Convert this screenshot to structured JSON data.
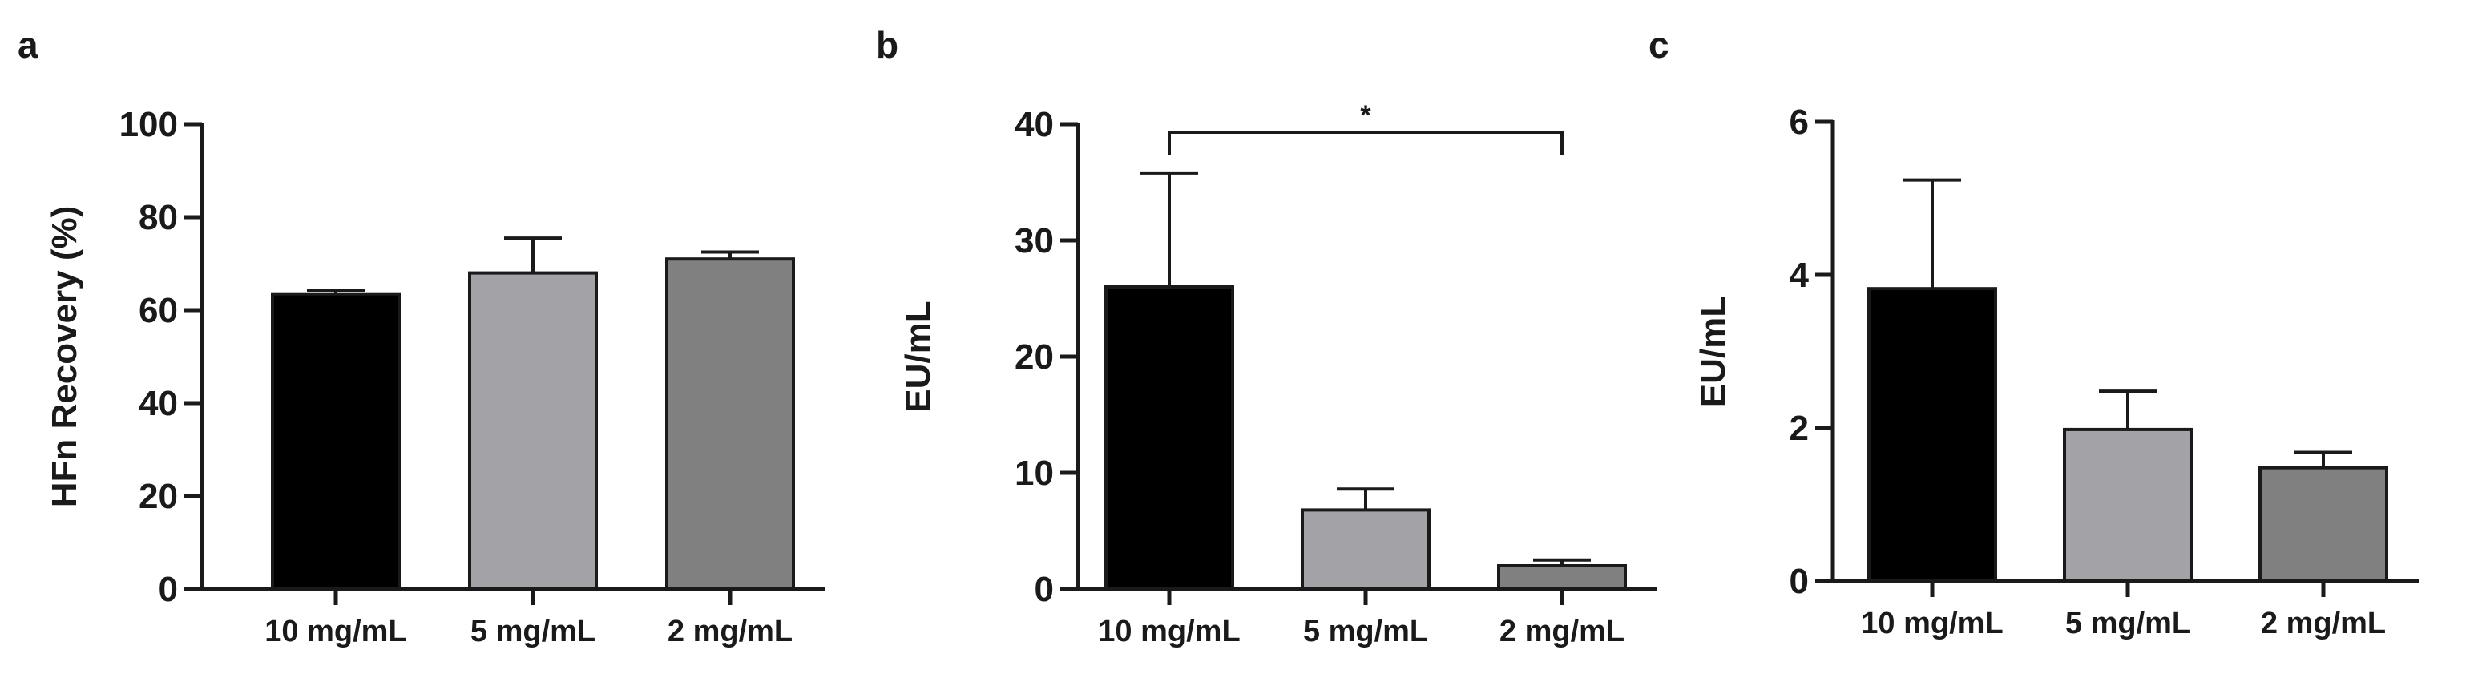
{
  "chart_data": [
    {
      "panel": "a",
      "type": "bar",
      "categories": [
        "10 mg/mL",
        "5 mg/mL",
        "2 mg/mL"
      ],
      "values": [
        63.5,
        68,
        71
      ],
      "errors": [
        0.8,
        7.5,
        1.5
      ],
      "bar_colors": [
        "#000000",
        "#a3a2a7",
        "#808080"
      ],
      "ylabel": "HFn  Recovery (%)",
      "ylim": [
        0,
        100
      ],
      "yticks": [
        0,
        20,
        40,
        60,
        80,
        100
      ]
    },
    {
      "panel": "b",
      "type": "bar",
      "categories": [
        "10 mg/mL",
        "5 mg/mL",
        "2 mg/mL"
      ],
      "values": [
        26,
        6.8,
        2
      ],
      "errors": [
        9.8,
        1.8,
        0.5
      ],
      "bar_colors": [
        "#000000",
        "#a3a2a7",
        "#808080"
      ],
      "ylabel": "EU/mL",
      "ylim": [
        0,
        40
      ],
      "yticks": [
        0,
        10,
        20,
        30,
        40
      ],
      "significance": {
        "from": "10 mg/mL",
        "to": "2 mg/mL",
        "label": "*"
      }
    },
    {
      "panel": "c",
      "type": "bar",
      "categories": [
        "10 mg/mL",
        "5 mg/mL",
        "2 mg/mL"
      ],
      "values": [
        3.82,
        1.98,
        1.48
      ],
      "errors": [
        1.42,
        0.5,
        0.2
      ],
      "bar_colors": [
        "#000000",
        "#a3a2a7",
        "#808080"
      ],
      "ylabel": "EU/mL",
      "ylim": [
        0,
        6
      ],
      "yticks": [
        0,
        2,
        4,
        6
      ]
    }
  ]
}
